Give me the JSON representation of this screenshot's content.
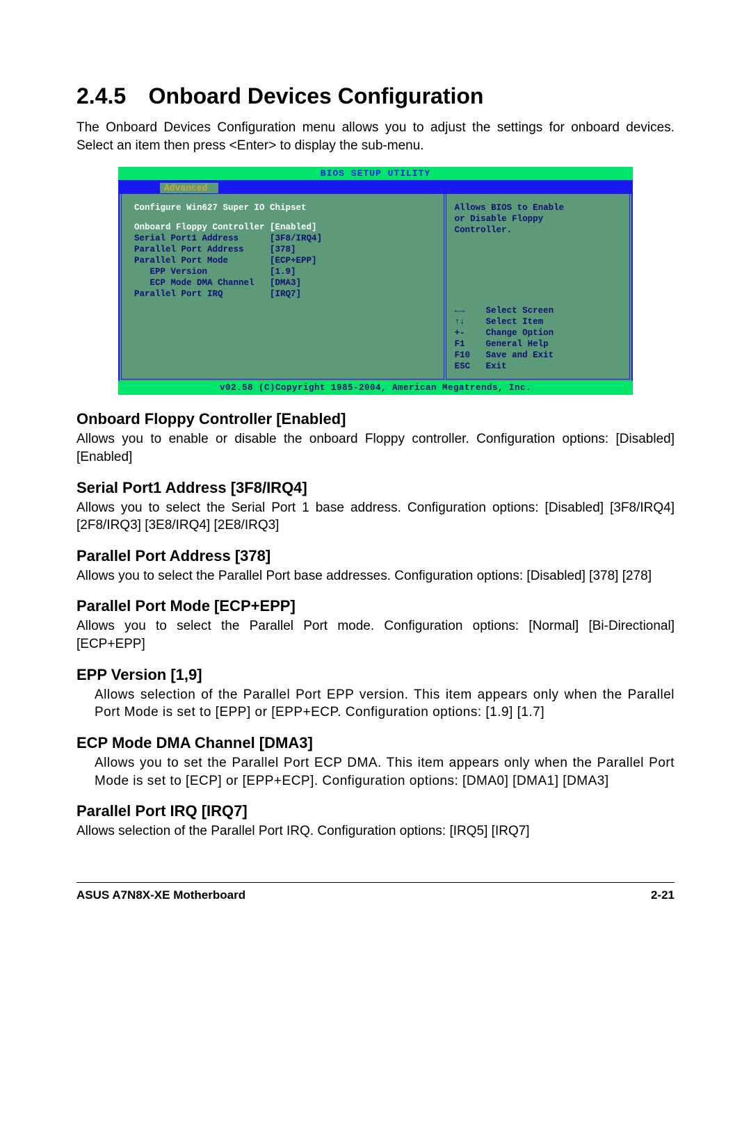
{
  "heading": {
    "number": "2.4.5",
    "title": "Onboard Devices Configuration"
  },
  "intro": "The Onboard Devices Configuration menu allows you to adjust the settings for onboard devices. Select an item then press <Enter> to display the sub-menu.",
  "bios": {
    "header": "BIOS SETUP UTILITY",
    "tab": "Advanced",
    "chipset": "Configure Win627 Super IO Chipset",
    "rows": [
      {
        "label": "Onboard Floppy Controller",
        "value": "[Enabled]",
        "hl": true,
        "indent": 0
      },
      {
        "label": "Serial Port1 Address",
        "value": "[3F8/IRQ4]",
        "hl": false,
        "indent": 0
      },
      {
        "label": "Parallel Port Address",
        "value": "[378]",
        "hl": false,
        "indent": 0
      },
      {
        "label": "Parallel Port Mode",
        "value": "[ECP+EPP]",
        "hl": false,
        "indent": 0
      },
      {
        "label": "EPP Version",
        "value": "[1.9]",
        "hl": false,
        "indent": 1
      },
      {
        "label": "ECP Mode DMA Channel",
        "value": "[DMA3]",
        "hl": false,
        "indent": 1
      },
      {
        "label": "Parallel Port IRQ",
        "value": "[IRQ7]",
        "hl": false,
        "indent": 0
      }
    ],
    "help": [
      "Allows BIOS to Enable",
      "or Disable Floppy",
      "Controller."
    ],
    "keys": [
      {
        "k": "←→",
        "t": "Select Screen"
      },
      {
        "k": "↑↓",
        "t": "Select Item"
      },
      {
        "k": "+-",
        "t": "Change Option"
      },
      {
        "k": "F1",
        "t": "General Help"
      },
      {
        "k": "F10",
        "t": "Save and Exit"
      },
      {
        "k": "ESC",
        "t": "Exit"
      }
    ],
    "footer": "v02.58 (C)Copyright 1985-2004, American Megatrends, Inc."
  },
  "items": [
    {
      "title": "Onboard Floppy Controller [Enabled]",
      "desc": "Allows you to enable or disable the onboard Floppy controller. Configuration options: [Disabled] [Enabled]",
      "indent": false
    },
    {
      "title": "Serial Port1 Address [3F8/IRQ4]",
      "desc": "Allows you to select the Serial Port 1 base address. Configuration options: [Disabled] [3F8/IRQ4] [2F8/IRQ3] [3E8/IRQ4] [2E8/IRQ3]",
      "indent": false
    },
    {
      "title": "Parallel Port Address [378]",
      "desc": "Allows you to select the Parallel Port base addresses. Configuration options: [Disabled] [378] [278]",
      "indent": false
    },
    {
      "title": "Parallel Port Mode [ECP+EPP]",
      "desc": "Allows you to select the Parallel Port mode. Configuration options: [Normal] [Bi-Directional] [ECP+EPP]",
      "indent": false
    },
    {
      "title": "EPP Version [1,9]",
      "desc": "Allows selection of the Parallel Port EPP version. This item appears only when the Parallel Port Mode is set to [EPP] or [EPP+ECP. Configuration options: [1.9] [1.7]",
      "indent": true
    },
    {
      "title": "ECP Mode DMA Channel [DMA3]",
      "desc": "Allows you to set the Parallel Port ECP DMA. This item appears only when the Parallel Port Mode is set to [ECP] or [EPP+ECP]. Configuration options: [DMA0] [DMA1] [DMA3]",
      "indent": true
    },
    {
      "title": "Parallel Port IRQ [IRQ7]",
      "desc": "Allows selection of the Parallel Port IRQ. Configuration options: [IRQ5] [IRQ7]",
      "indent": false
    }
  ],
  "footer": {
    "left": "ASUS A7N8X-XE Motherboard",
    "right": "2-21"
  },
  "colors": {
    "bios_green": "#00e56a",
    "bios_blue": "#1a1af0",
    "bios_body": "#5d9a7a",
    "bios_text": "#0e0e70",
    "bios_tab_text": "#cfa43a",
    "white": "#ffffff",
    "black": "#000000"
  }
}
